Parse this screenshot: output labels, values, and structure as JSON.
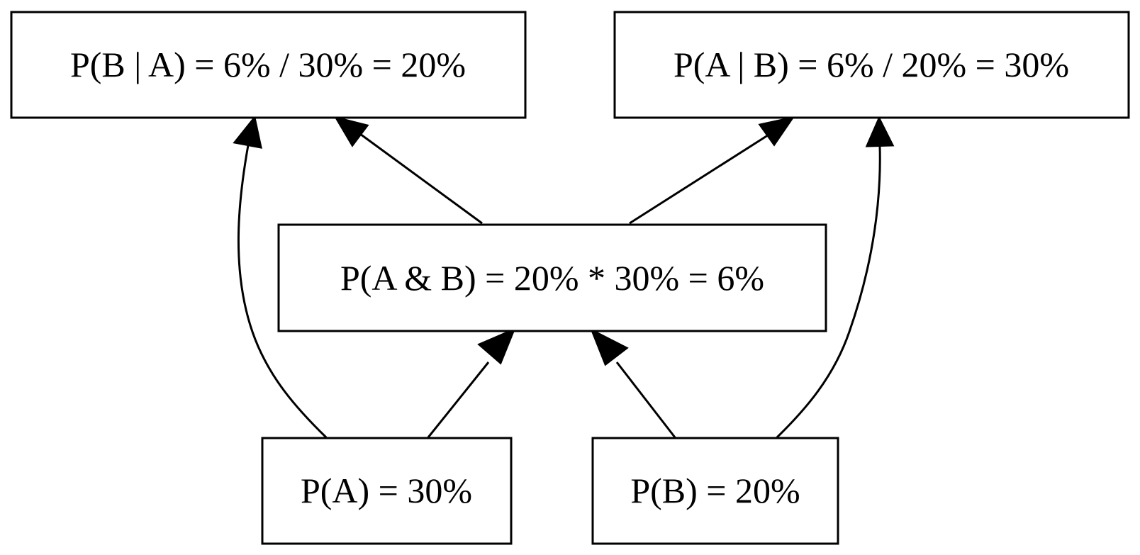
{
  "nodes": {
    "p_b_given_a": {
      "label": "P(B | A) = 6% / 30% = 20%"
    },
    "p_a_given_b": {
      "label": "P(A | B) = 6% / 20% = 30%"
    },
    "p_a_and_b": {
      "label": "P(A & B) = 20% * 30% = 6%"
    },
    "p_a": {
      "label": "P(A) = 30%"
    },
    "p_b": {
      "label": "P(B) = 20%"
    }
  },
  "edges": [
    {
      "from": "p_a",
      "to": "p_b_given_a"
    },
    {
      "from": "p_a",
      "to": "p_a_and_b"
    },
    {
      "from": "p_b",
      "to": "p_a_and_b"
    },
    {
      "from": "p_b",
      "to": "p_a_given_b"
    },
    {
      "from": "p_a_and_b",
      "to": "p_b_given_a"
    },
    {
      "from": "p_a_and_b",
      "to": "p_a_given_b"
    }
  ],
  "colors": {
    "stroke": "#000000",
    "background": "#ffffff"
  }
}
